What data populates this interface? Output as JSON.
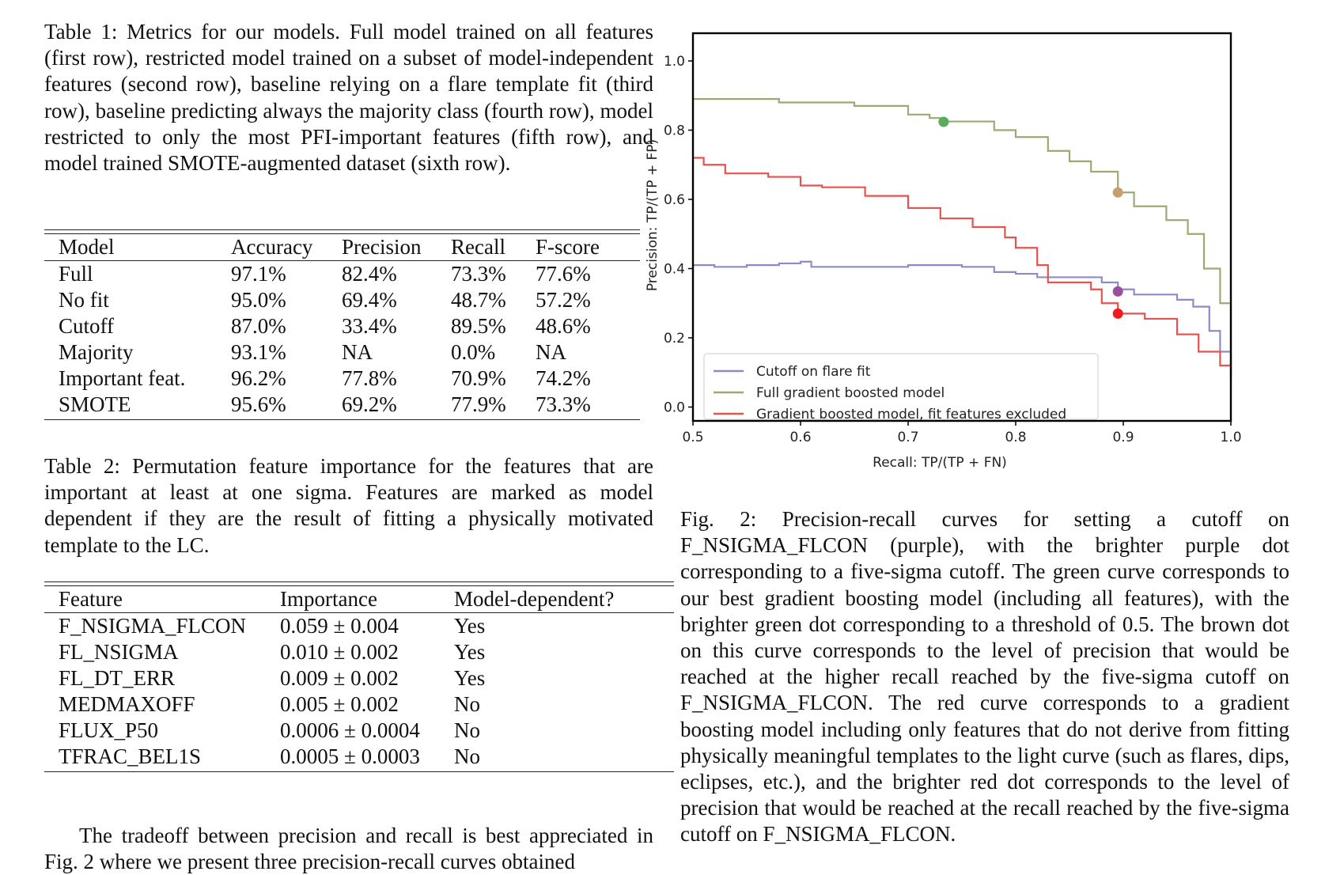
{
  "table1": {
    "caption": "Table 1: Metrics for our models. Full model trained on all features (first row), restricted model trained on a subset of model-independent features (second row), baseline relying on a flare template fit (third row), baseline predicting always the majority class (fourth row), model restricted to only the most PFI-important features (fifth row), and model trained SMOTE-augmented dataset (sixth row).",
    "headers": [
      "Model",
      "Accuracy",
      "Precision",
      "Recall",
      "F-score"
    ],
    "rows": [
      [
        "Full",
        "97.1%",
        "82.4%",
        "73.3%",
        "77.6%"
      ],
      [
        "No fit",
        "95.0%",
        "69.4%",
        "48.7%",
        "57.2%"
      ],
      [
        "Cutoff",
        "87.0%",
        "33.4%",
        "89.5%",
        "48.6%"
      ],
      [
        "Majority",
        "93.1%",
        "NA",
        "0.0%",
        "NA"
      ],
      [
        "Important feat.",
        "96.2%",
        "77.8%",
        "70.9%",
        "74.2%"
      ],
      [
        "SMOTE",
        "95.6%",
        "69.2%",
        "77.9%",
        "73.3%"
      ]
    ]
  },
  "table2": {
    "caption": "Table 2: Permutation feature importance for the features that are important at least at one sigma. Features are marked as model dependent if they are the result of fitting a physically motivated template to the LC.",
    "headers": [
      "Feature",
      "Importance",
      "Model-dependent?"
    ],
    "rows": [
      [
        "F_NSIGMA_FLCON",
        "0.059 ± 0.004",
        "Yes"
      ],
      [
        "FL_NSIGMA",
        "0.010 ± 0.002",
        "Yes"
      ],
      [
        "FL_DT_ERR",
        "0.009 ± 0.002",
        "Yes"
      ],
      [
        "MEDMAXOFF",
        "0.005 ± 0.002",
        "No"
      ],
      [
        "FLUX_P50",
        "0.0006 ± 0.0004",
        "No"
      ],
      [
        "TFRAC_BEL1S",
        "0.0005 ± 0.0003",
        "No"
      ]
    ]
  },
  "body_paragraph": "The tradeoff between precision and recall is best appreciated in Fig. 2 where we present three precision-recall curves obtained",
  "figure2": {
    "caption": "Fig. 2: Precision-recall curves for setting a cutoff on F_NSIGMA_FLCON (purple), with the brighter purple dot corresponding to a five-sigma cutoff. The green curve corresponds to our best gradient boosting model (including all features), with the brighter green dot corresponding to a threshold of 0.5. The brown dot on this curve corresponds to the level of precision that would be reached at the higher recall reached by the five-sigma cutoff on F_NSIGMA_FLCON. The red curve corresponds to a gradient boosting model including only features that do not derive from fitting physically meaningful templates to the light curve (such as flares, dips, eclipses, etc.), and the brighter red dot corresponds to the level of precision that would be reached at the recall reached by the five-sigma cutoff on F_NSIGMA_FLCON."
  },
  "chart_data": {
    "type": "line",
    "title": "",
    "xlabel": "Recall: TP/(TP + FN)",
    "ylabel": "Precision: TP/(TP + FP)",
    "xlim": [
      0.5,
      1.0
    ],
    "ylim": [
      -0.04,
      1.08
    ],
    "xticks": [
      "0.5",
      "0.6",
      "0.7",
      "0.8",
      "0.9",
      "1.0"
    ],
    "yticks": [
      "0.0",
      "0.2",
      "0.4",
      "0.6",
      "0.8",
      "1.0"
    ],
    "grid": false,
    "legend_position": "lower-left",
    "series": [
      {
        "name": "Cutoff on flare fit",
        "color": "#8c8cc4",
        "x": [
          0.5,
          0.52,
          0.55,
          0.58,
          0.6,
          0.61,
          0.65,
          0.7,
          0.75,
          0.78,
          0.8,
          0.82,
          0.84,
          0.87,
          0.88,
          0.895,
          0.91,
          0.95,
          0.965,
          0.98,
          0.99,
          1.0
        ],
        "y": [
          0.41,
          0.405,
          0.41,
          0.415,
          0.42,
          0.405,
          0.405,
          0.41,
          0.405,
          0.39,
          0.385,
          0.375,
          0.375,
          0.375,
          0.36,
          0.34,
          0.325,
          0.31,
          0.29,
          0.22,
          0.16,
          0.1
        ]
      },
      {
        "name": "Full gradient boosted model",
        "color": "#9aab72",
        "x": [
          0.5,
          0.55,
          0.58,
          0.63,
          0.65,
          0.7,
          0.72,
          0.733,
          0.76,
          0.78,
          0.8,
          0.83,
          0.85,
          0.87,
          0.895,
          0.91,
          0.94,
          0.96,
          0.975,
          0.99,
          1.0
        ],
        "y": [
          0.89,
          0.89,
          0.88,
          0.88,
          0.87,
          0.845,
          0.835,
          0.825,
          0.825,
          0.8,
          0.78,
          0.74,
          0.71,
          0.68,
          0.62,
          0.58,
          0.54,
          0.5,
          0.4,
          0.3,
          0.07
        ]
      },
      {
        "name": "Gradient boosted model, fit features excluded",
        "color": "#e8524e",
        "x": [
          0.5,
          0.51,
          0.53,
          0.57,
          0.6,
          0.62,
          0.66,
          0.7,
          0.73,
          0.76,
          0.79,
          0.8,
          0.82,
          0.83,
          0.87,
          0.88,
          0.895,
          0.92,
          0.95,
          0.97,
          0.99,
          1.0
        ],
        "y": [
          0.72,
          0.7,
          0.675,
          0.665,
          0.64,
          0.635,
          0.61,
          0.575,
          0.545,
          0.52,
          0.49,
          0.46,
          0.41,
          0.36,
          0.34,
          0.3,
          0.27,
          0.255,
          0.21,
          0.16,
          0.12,
          0.09
        ]
      }
    ],
    "markers": [
      {
        "name": "threshold-0.5",
        "series": "Full gradient boosted model",
        "x": 0.733,
        "y": 0.824,
        "color": "#5aac5a"
      },
      {
        "name": "five-sigma-recall-on-full",
        "series": "Full gradient boosted model",
        "x": 0.895,
        "y": 0.62,
        "color": "#c4a06c"
      },
      {
        "name": "five-sigma-cutoff",
        "series": "Cutoff on flare fit",
        "x": 0.895,
        "y": 0.334,
        "color": "#9a4fa0"
      },
      {
        "name": "five-sigma-recall-on-nofit",
        "series": "Gradient boosted model, fit features excluded",
        "x": 0.895,
        "y": 0.27,
        "color": "#ee1c1c"
      }
    ]
  }
}
